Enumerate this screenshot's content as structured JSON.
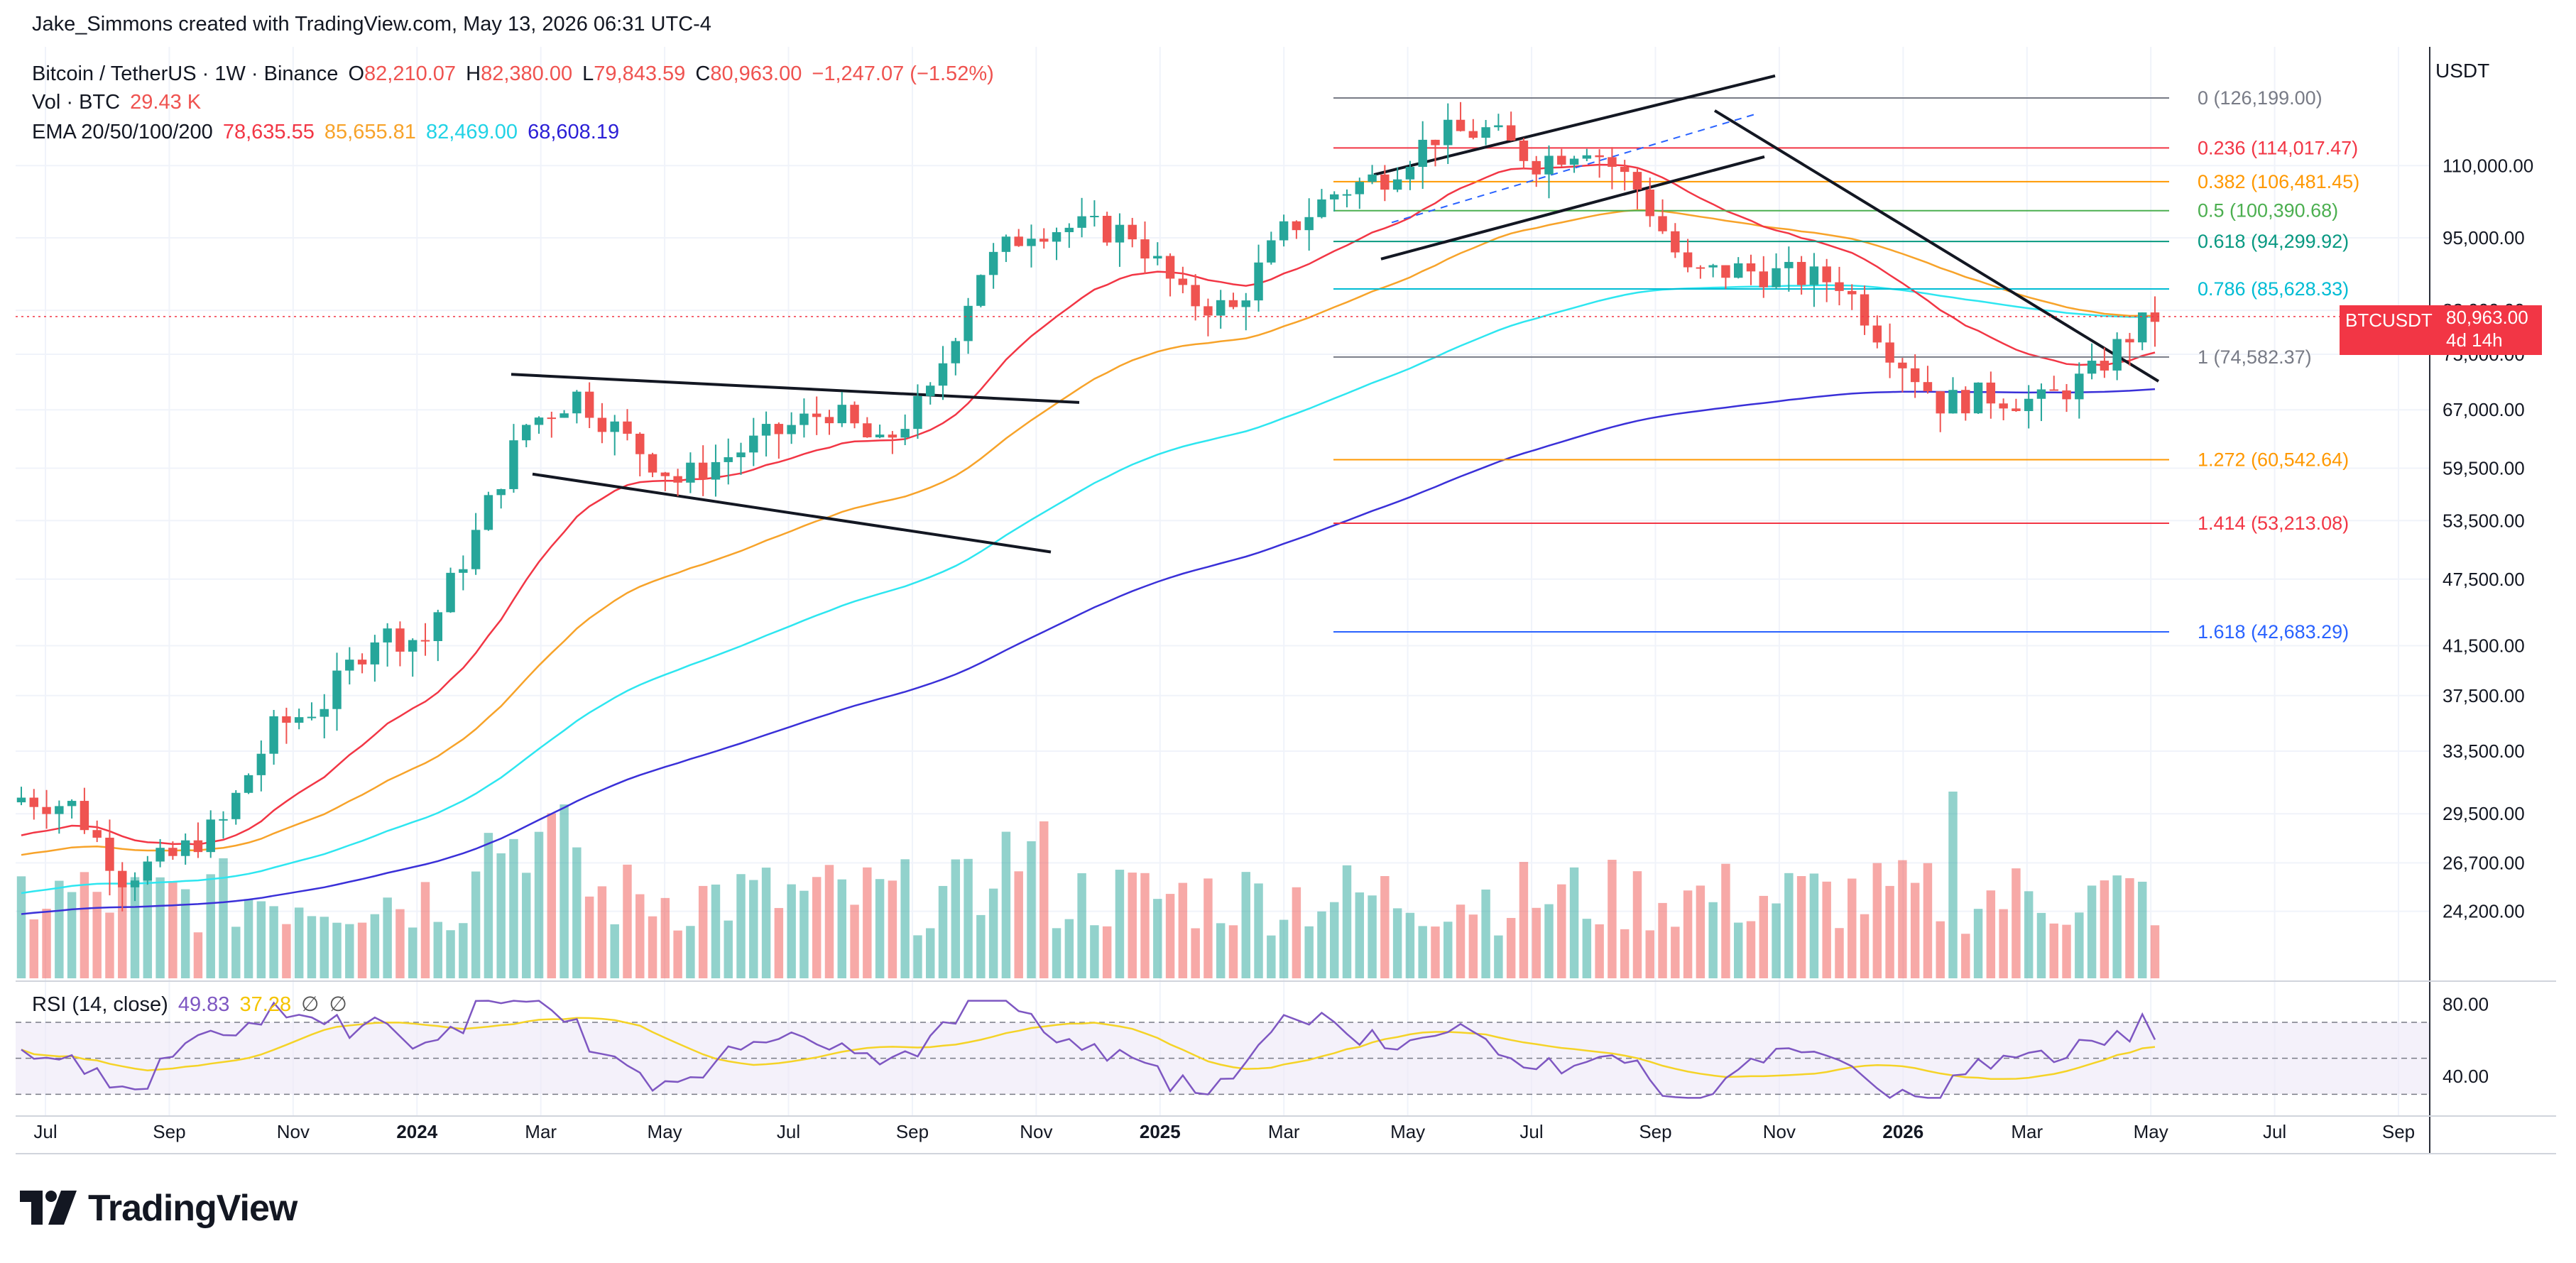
{
  "header": {
    "caption": "Jake_Simmons created with TradingView.com, May 13, 2026 06:31 UTC-4"
  },
  "legend": {
    "symbol": "Bitcoin / TetherUS · 1W · Binance",
    "open_label": "O",
    "open": "82,210.07",
    "high_label": "H",
    "high": "82,380.00",
    "low_label": "L",
    "low": "79,843.59",
    "close_label": "C",
    "close": "80,963.00",
    "change": "−1,247.07 (−1.52%)",
    "vol_label": "Vol · BTC",
    "vol_value": "29.43 K",
    "ema_label": "EMA 20/50/100/200",
    "ema20": "78,635.55",
    "ema50": "85,655.81",
    "ema100": "82,469.00",
    "ema200": "68,608.19",
    "rsi_label": "RSI (14, close)",
    "rsi_value": "49.83",
    "rsi_ma": "37.28"
  },
  "colors": {
    "up": "#26a69a",
    "down": "#ef5350",
    "ema20": "#f23645",
    "ema50": "#f7a32a",
    "ema100": "#2ee6f0",
    "ema200": "#3a30d8",
    "rsi": "#7e57c2",
    "rsi_ma": "#f5d327",
    "price_tag": "#f23645"
  },
  "price_axis": {
    "currency": "USDT",
    "ticks": [
      "110,000.00",
      "95,000.00",
      "82,000.00",
      "75,000.00",
      "67,000.00",
      "59,500.00",
      "53,500.00",
      "47,500.00",
      "41,500.00",
      "37,500.00",
      "33,500.00",
      "29,500.00",
      "26,700.00",
      "24,200.00"
    ],
    "current_symbol": "BTCUSDT",
    "current_price": "80,963.00",
    "countdown": "4d 14h"
  },
  "rsi_axis": {
    "ticks": [
      "80.00",
      "40.00"
    ]
  },
  "time_axis": {
    "labels": [
      "Jul",
      "Sep",
      "Nov",
      "2024",
      "Mar",
      "May",
      "Jul",
      "Sep",
      "Nov",
      "2025",
      "Mar",
      "May",
      "Jul",
      "Sep",
      "Nov",
      "2026",
      "Mar",
      "May",
      "Jul",
      "Sep"
    ],
    "bold": [
      "2024",
      "2025",
      "2026"
    ]
  },
  "fib_levels": [
    {
      "label": "0 (126,199.00)",
      "color": "#787b86"
    },
    {
      "label": "0.236 (114,017.47)",
      "color": "#f23645"
    },
    {
      "label": "0.382 (106,481.45)",
      "color": "#ff9800"
    },
    {
      "label": "0.5 (100,390.68)",
      "color": "#4caf50"
    },
    {
      "label": "0.618 (94,299.92)",
      "color": "#089981"
    },
    {
      "label": "0.786 (85,628.33)",
      "color": "#00bcd4"
    },
    {
      "label": "1 (74,582.37)",
      "color": "#787b86"
    },
    {
      "label": "1.272 (60,542.64)",
      "color": "#ff9800"
    },
    {
      "label": "1.414 (53,213.08)",
      "color": "#f23645"
    },
    {
      "label": "1.618 (42,683.29)",
      "color": "#2962ff"
    }
  ],
  "brand": {
    "name": "TradingView"
  }
}
